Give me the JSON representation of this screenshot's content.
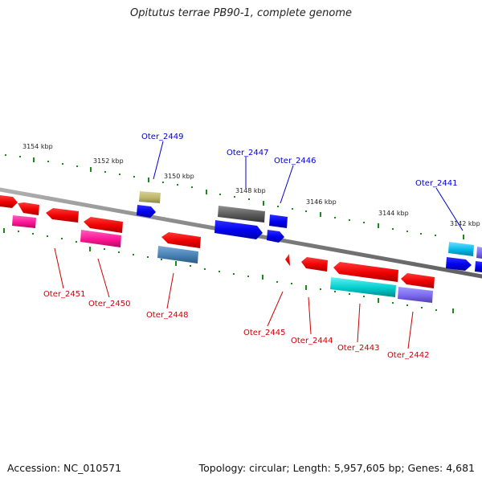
{
  "title": "Opitutus terrae PB90-1, complete genome",
  "footer": {
    "accession": "Accession: NC_010571",
    "summary": "Topology: circular; Length: 5,957,605 bp; Genes: 4,681"
  },
  "colors": {
    "backbone": "#808080",
    "tick": "#1a8a1a",
    "label_top": "#0000cc",
    "label_bottom": "#cc0000"
  },
  "scale_labels": [
    "3154 kbp",
    "3152 kbp",
    "3150 kbp",
    "3148 kbp",
    "3146 kbp",
    "3144 kbp",
    "3142 kbp"
  ],
  "gene_labels_top": [
    "Oter_2449",
    "Oter_2447",
    "Oter_2446",
    "Oter_2441"
  ],
  "gene_labels_bottom": [
    "Oter_2451",
    "Oter_2450",
    "Oter_2448",
    "Oter_2445",
    "Oter_2444",
    "Oter_2443",
    "Oter_2442"
  ]
}
